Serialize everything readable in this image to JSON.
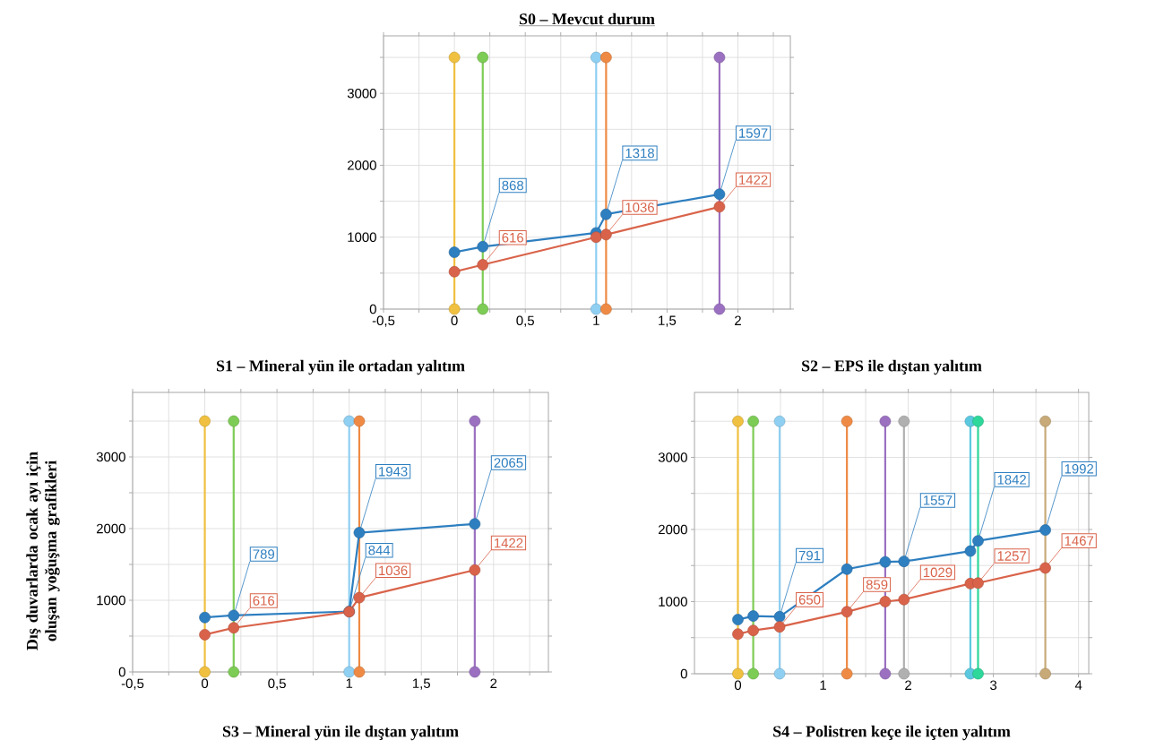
{
  "chart_data": [
    {
      "type": "line",
      "title": "S0 – Mevcut durum",
      "xlim": [
        -0.5,
        2.37
      ],
      "ylim": [
        0,
        3800
      ],
      "xticks": [
        {
          "value": -0.5,
          "label": "-0,5"
        },
        {
          "value": -0.25,
          "label": null
        },
        0,
        {
          "value": 0.25,
          "label": null
        },
        {
          "value": 0.5,
          "label": "0,5"
        },
        {
          "value": 0.75,
          "label": null
        },
        1,
        {
          "value": 1.25,
          "label": null
        },
        {
          "value": 1.5,
          "label": "1,5"
        },
        {
          "value": 1.75,
          "label": null
        },
        2,
        {
          "value": 2.25,
          "label": null
        }
      ],
      "yticks": [
        0,
        {
          "value": 500,
          "label": null
        },
        1000,
        {
          "value": 1500,
          "label": null
        },
        2000,
        {
          "value": 2500,
          "label": null
        },
        3000,
        {
          "value": 3500,
          "label": null
        }
      ],
      "grid": true,
      "marker": "circle",
      "series": [
        {
          "color": "#f0c040",
          "x": [
            0,
            0
          ],
          "values": [
            0,
            3500
          ]
        },
        {
          "color": "#7dcc55",
          "x": [
            0.2,
            0.2
          ],
          "values": [
            0,
            3500
          ]
        },
        {
          "color": "#8fcff2",
          "x": [
            1.0,
            1.0
          ],
          "values": [
            0,
            3500
          ]
        },
        {
          "color": "#ef8a45",
          "x": [
            1.07,
            1.07
          ],
          "values": [
            0,
            3500
          ]
        },
        {
          "color": "#9b70c0",
          "x": [
            1.87,
            1.87
          ],
          "values": [
            0,
            3500
          ]
        },
        {
          "color": "#2e7fc0",
          "x": [
            0,
            0.2,
            1.0,
            1.07,
            1.87
          ],
          "values": [
            790,
            868,
            1060,
            1318,
            1597
          ],
          "value_labels": [
            null,
            "868",
            null,
            "1318",
            "1597"
          ]
        },
        {
          "color": "#d9634a",
          "x": [
            0,
            0.2,
            1.0,
            1.07,
            1.87
          ],
          "values": [
            520,
            616,
            1000,
            1036,
            1422
          ],
          "value_labels": [
            null,
            "616",
            null,
            "1036",
            "1422"
          ]
        }
      ]
    },
    {
      "type": "line",
      "title": "S1 – Mineral yün ile ortadan yalıtım",
      "ylabel": "Dış duvarlarda ocak ayı için oluşan yoğuşma grafikleri",
      "annotations": [
        "S3 – Mineral yün ile dıştan yalıtım"
      ],
      "xlim": [
        -0.5,
        2.38
      ],
      "ylim": [
        0,
        3900
      ],
      "xticks": [
        {
          "value": -0.5,
          "label": "-0,5"
        },
        {
          "value": -0.25,
          "label": null
        },
        0,
        {
          "value": 0.25,
          "label": null
        },
        {
          "value": 0.5,
          "label": "0,5"
        },
        {
          "value": 0.75,
          "label": null
        },
        1,
        {
          "value": 1.25,
          "label": null
        },
        {
          "value": 1.5,
          "label": "1,5"
        },
        {
          "value": 1.75,
          "label": null
        },
        2,
        {
          "value": 2.25,
          "label": null
        }
      ],
      "yticks": [
        0,
        {
          "value": 500,
          "label": null
        },
        1000,
        {
          "value": 1500,
          "label": null
        },
        2000,
        {
          "value": 2500,
          "label": null
        },
        3000,
        {
          "value": 3500,
          "label": null
        }
      ],
      "grid": true,
      "marker": "circle",
      "series": [
        {
          "color": "#f0c040",
          "x": [
            0,
            0
          ],
          "values": [
            0,
            3500
          ]
        },
        {
          "color": "#7dcc55",
          "x": [
            0.2,
            0.2
          ],
          "values": [
            0,
            3500
          ]
        },
        {
          "color": "#8fcff2",
          "x": [
            1.0,
            1.0
          ],
          "values": [
            0,
            3500
          ]
        },
        {
          "color": "#ef8a45",
          "x": [
            1.07,
            1.07
          ],
          "values": [
            0,
            3500
          ]
        },
        {
          "color": "#9b70c0",
          "x": [
            1.87,
            1.87
          ],
          "values": [
            0,
            3500
          ]
        },
        {
          "color": "#2e7fc0",
          "x": [
            0,
            0.2,
            1.0,
            1.07,
            1.87
          ],
          "values": [
            760,
            789,
            844,
            1943,
            2065
          ],
          "value_labels": [
            null,
            "789",
            "844",
            "1943",
            "2065"
          ]
        },
        {
          "color": "#d9634a",
          "x": [
            0,
            0.2,
            1.0,
            1.07,
            1.87
          ],
          "values": [
            520,
            616,
            840,
            1036,
            1422
          ],
          "value_labels": [
            null,
            "616",
            null,
            "1036",
            "1422"
          ]
        }
      ]
    },
    {
      "type": "line",
      "title": "S2 – EPS ile dıştan yalıtım",
      "annotations": [
        "S4 – Polistren keçe ile içten yalıtım"
      ],
      "xlim": [
        -0.51,
        4.12
      ],
      "ylim": [
        0,
        3900
      ],
      "xticks": [
        0,
        {
          "value": 0.5,
          "label": null
        },
        1,
        {
          "value": 1.5,
          "label": null
        },
        2,
        {
          "value": 2.5,
          "label": null
        },
        3,
        {
          "value": 3.5,
          "label": null
        },
        4
      ],
      "yticks": [
        0,
        {
          "value": 500,
          "label": null
        },
        1000,
        {
          "value": 1500,
          "label": null
        },
        2000,
        {
          "value": 2500,
          "label": null
        },
        3000,
        {
          "value": 3500,
          "label": null
        }
      ],
      "grid": true,
      "marker": "circle",
      "series": [
        {
          "color": "#f0c040",
          "x": [
            0,
            0
          ],
          "values": [
            0,
            3500
          ]
        },
        {
          "color": "#7dcc55",
          "x": [
            0.18,
            0.18
          ],
          "values": [
            0,
            3500
          ]
        },
        {
          "color": "#8fcff2",
          "x": [
            0.49,
            0.49
          ],
          "values": [
            0,
            3500
          ]
        },
        {
          "color": "#ef8a45",
          "x": [
            1.28,
            1.28
          ],
          "values": [
            0,
            3500
          ]
        },
        {
          "color": "#9b70c0",
          "x": [
            1.73,
            1.73
          ],
          "values": [
            0,
            3500
          ]
        },
        {
          "color": "#b0b0b0",
          "x": [
            1.95,
            1.95
          ],
          "values": [
            0,
            3500
          ]
        },
        {
          "color": "#5bc8e0",
          "x": [
            2.73,
            2.73
          ],
          "values": [
            0,
            3500
          ]
        },
        {
          "color": "#2ed79a",
          "x": [
            2.82,
            2.82
          ],
          "values": [
            0,
            3500
          ]
        },
        {
          "color": "#c8aa78",
          "x": [
            3.61,
            3.61
          ],
          "values": [
            0,
            3500
          ]
        },
        {
          "color": "#2e7fc0",
          "x": [
            0,
            0.18,
            0.49,
            1.28,
            1.73,
            1.95,
            2.73,
            2.82,
            3.61
          ],
          "values": [
            750,
            800,
            791,
            1450,
            1550,
            1557,
            1700,
            1842,
            1992
          ],
          "value_labels": [
            null,
            null,
            "791",
            null,
            null,
            "1557",
            null,
            "1842",
            "1992"
          ]
        },
        {
          "color": "#d9634a",
          "x": [
            0,
            0.18,
            0.49,
            1.28,
            1.73,
            1.95,
            2.73,
            2.82,
            3.61
          ],
          "values": [
            550,
            600,
            650,
            859,
            1000,
            1029,
            1250,
            1257,
            1467
          ],
          "value_labels": [
            null,
            null,
            "650",
            "859",
            null,
            "1029",
            null,
            "1257",
            "1467"
          ]
        }
      ]
    }
  ]
}
